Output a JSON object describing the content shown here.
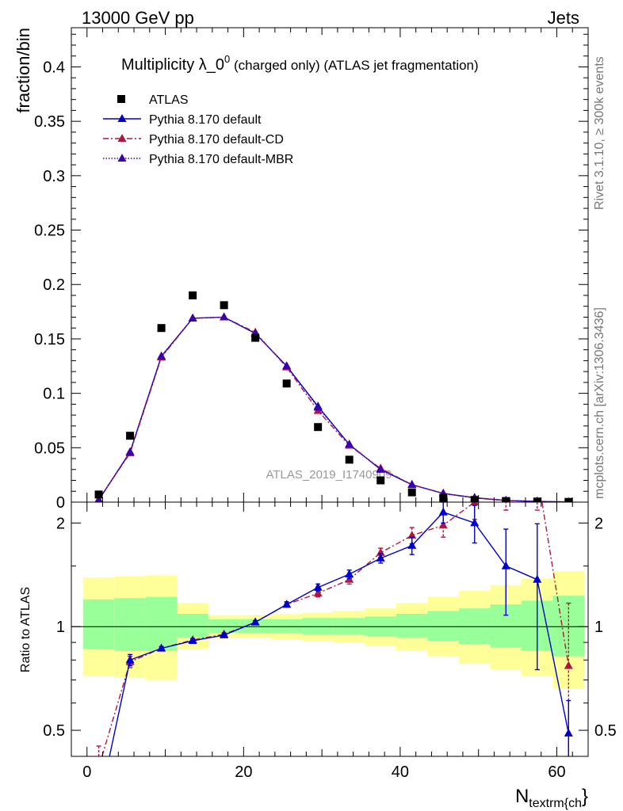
{
  "header": {
    "left": "13000 GeV pp",
    "right": "Jets"
  },
  "side_text": {
    "rivet": "Rivet 3.1.10, ≥ 300k events",
    "site": "mcplots.cern.ch [arXiv:1306.3436]"
  },
  "watermark": "ATLAS_2019_I1740909",
  "chart_data": [
    {
      "type": "scatter",
      "panel": "main",
      "title_main": "Multiplicity λ_0",
      "title_sup": "0",
      "title_rest": " (charged only) (ATLAS jet fragmentation)",
      "ylabel": "fraction/bin",
      "xlim": [
        -2,
        64
      ],
      "ylim": [
        0,
        0.436
      ],
      "yticks": [
        0,
        0.05,
        0.1,
        0.15,
        0.2,
        0.25,
        0.3,
        0.35,
        0.4
      ],
      "ytick_labels": [
        "0",
        "0.05",
        "0.1",
        "0.15",
        "0.2",
        "0.25",
        "0.3",
        "0.35",
        "0.4"
      ],
      "legend_position": "top-left",
      "data_series": {
        "name": "ATLAS",
        "color": "#000000",
        "x": [
          1.5,
          5.5,
          9.5,
          13.5,
          17.5,
          21.5,
          25.5,
          29.5,
          33.5,
          37.5,
          41.5,
          45.5,
          49.5,
          53.5,
          57.5,
          61.5
        ],
        "y": [
          0.007,
          0.061,
          0.16,
          0.19,
          0.181,
          0.151,
          0.109,
          0.069,
          0.039,
          0.02,
          0.009,
          0.004,
          0.002,
          0.001,
          0.0005,
          0.0002
        ]
      },
      "series": [
        {
          "name": "Pythia 8.170 default",
          "color": "#0000cc",
          "dash": "solid",
          "x": [
            1.5,
            5.5,
            9.5,
            13.5,
            17.5,
            21.5,
            25.5,
            29.5,
            33.5,
            37.5,
            41.5,
            45.5,
            49.5,
            53.5,
            57.5,
            61.5
          ],
          "y": [
            0.002,
            0.046,
            0.134,
            0.169,
            0.17,
            0.155,
            0.125,
            0.088,
            0.053,
            0.03,
            0.016,
            0.008,
            0.004,
            0.0015,
            0.0007,
            0.0001
          ]
        },
        {
          "name": "Pythia 8.170 default-CD",
          "color": "#b0173e",
          "dash": "dashdot",
          "x": [
            1.5,
            5.5,
            9.5,
            13.5,
            17.5,
            21.5,
            25.5,
            29.5,
            33.5,
            37.5,
            41.5,
            45.5,
            49.5,
            53.5,
            57.5,
            61.5
          ],
          "y": [
            0.0025,
            0.045,
            0.133,
            0.169,
            0.17,
            0.156,
            0.124,
            0.084,
            0.052,
            0.031,
            0.016,
            0.008,
            0.004,
            0.0015,
            0.0007,
            0.0002
          ]
        },
        {
          "name": "Pythia 8.170 default-MBR",
          "color": "#3a00b0",
          "dash": "dotted",
          "x": [
            1.5,
            5.5,
            9.5,
            13.5,
            17.5,
            21.5,
            25.5,
            29.5,
            33.5,
            37.5,
            41.5,
            45.5,
            49.5,
            53.5,
            57.5,
            61.5
          ],
          "y": [
            0.002,
            0.046,
            0.134,
            0.169,
            0.17,
            0.155,
            0.125,
            0.087,
            0.053,
            0.03,
            0.016,
            0.008,
            0.004,
            0.0015,
            0.0007,
            0.0001
          ]
        }
      ]
    },
    {
      "type": "line",
      "panel": "ratio",
      "ylabel": "Ratio to ATLAS",
      "xlabel_main": "N",
      "xlabel_sub": "textrm{ch",
      "xlabel_tail": "}",
      "xlim": [
        -2,
        64
      ],
      "ylim": [
        0.42,
        2.3
      ],
      "log_y": true,
      "yticks": [
        0.5,
        1,
        2
      ],
      "ytick_labels": [
        "0.5",
        "1",
        "2"
      ],
      "xticks": [
        0,
        20,
        40,
        60
      ],
      "xtick_labels": [
        "0",
        "20",
        "40",
        "60"
      ],
      "reference_line": 1,
      "bands": {
        "edges": [
          -0.5,
          3.5,
          7.5,
          11.5,
          15.5,
          19.5,
          23.5,
          27.5,
          31.5,
          35.5,
          39.5,
          43.5,
          47.5,
          51.5,
          55.5,
          59.5,
          63.5
        ],
        "yellow_lo": [
          0.72,
          0.71,
          0.7,
          0.86,
          0.93,
          0.93,
          0.92,
          0.91,
          0.9,
          0.88,
          0.85,
          0.82,
          0.78,
          0.75,
          0.72,
          0.66,
          0.58
        ],
        "yellow_hi": [
          1.39,
          1.4,
          1.41,
          1.17,
          1.08,
          1.08,
          1.09,
          1.1,
          1.11,
          1.13,
          1.17,
          1.22,
          1.27,
          1.32,
          1.38,
          1.45,
          1.52
        ],
        "green_lo": [
          0.86,
          0.85,
          0.85,
          0.93,
          0.96,
          0.96,
          0.96,
          0.95,
          0.95,
          0.94,
          0.93,
          0.91,
          0.89,
          0.87,
          0.85,
          0.82,
          0.8
        ],
        "green_hi": [
          1.2,
          1.21,
          1.22,
          1.09,
          1.05,
          1.05,
          1.05,
          1.06,
          1.06,
          1.07,
          1.09,
          1.11,
          1.13,
          1.16,
          1.19,
          1.23,
          1.26
        ],
        "yellow_color": "#ffff99",
        "green_color": "#99ff99"
      },
      "series": [
        {
          "name": "Pythia 8.170 default",
          "color": "#0000cc",
          "dash": "solid",
          "x": [
            1.5,
            5.5,
            9.5,
            13.5,
            17.5,
            21.5,
            25.5,
            29.5,
            33.5,
            37.5,
            41.5,
            45.5,
            49.5,
            53.5,
            57.5,
            61.5
          ],
          "y": [
            0.3,
            0.8,
            0.865,
            0.91,
            0.945,
            1.03,
            1.16,
            1.3,
            1.42,
            1.58,
            1.72,
            2.15,
            2.0,
            1.5,
            1.37,
            0.49
          ],
          "err": [
            0,
            0.03,
            0.01,
            0.01,
            0.01,
            0.01,
            0.02,
            0.03,
            0.04,
            0.05,
            0.1,
            0.15,
            0.25,
            0.42,
            0.62,
            0.12
          ]
        },
        {
          "name": "Pythia 8.170 default-CD",
          "color": "#b0173e",
          "dash": "dashdot",
          "x": [
            1.5,
            5.5,
            9.5,
            13.5,
            17.5,
            21.5,
            25.5,
            29.5,
            33.5,
            37.5,
            41.5,
            45.5,
            49.5,
            53.5,
            57.5,
            61.5
          ],
          "y": [
            0.39,
            0.79,
            0.865,
            0.915,
            0.95,
            1.03,
            1.16,
            1.25,
            1.37,
            1.64,
            1.84,
            1.97,
            2.3,
            2.6,
            2.8,
            0.77
          ],
          "err": [
            0.06,
            0.03,
            0.01,
            0.01,
            0.01,
            0.01,
            0.02,
            0.03,
            0.04,
            0.05,
            0.1,
            0.15,
            0.25,
            0.42,
            0.62,
            0.4
          ]
        }
      ]
    }
  ]
}
